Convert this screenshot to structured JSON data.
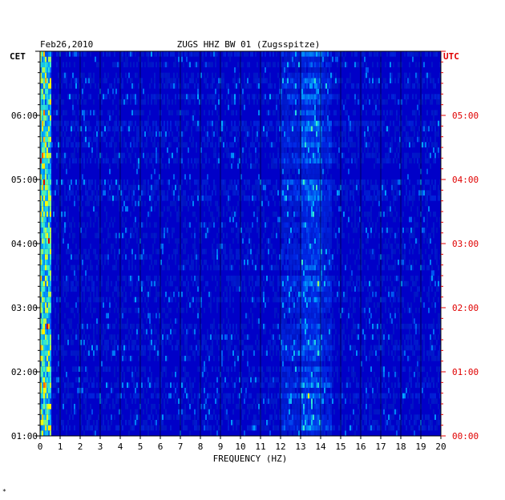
{
  "chart_data": {
    "type": "heatmap",
    "date": "Feb26,2010",
    "title": "ZUGS HHZ BW 01 (Zugsspitze)",
    "xlabel": "FREQUENCY (HZ)",
    "left_tz": "CET",
    "right_tz": "UTC",
    "xlim": [
      0,
      20
    ],
    "x_ticks": [
      "0",
      "1",
      "2",
      "3",
      "4",
      "5",
      "6",
      "7",
      "8",
      "9",
      "10",
      "11",
      "12",
      "13",
      "14",
      "15",
      "16",
      "17",
      "18",
      "19",
      "20"
    ],
    "left_ticks": [
      "06:00",
      "05:00",
      "04:00",
      "03:00",
      "02:00",
      "01:00"
    ],
    "right_ticks": [
      "05:00",
      "04:00",
      "03:00",
      "02:00",
      "01:00",
      "00:00"
    ],
    "time_range_utc_hours": [
      0,
      6
    ],
    "colors": {
      "low": "#0000c8",
      "mid": "#00c8ff",
      "high": "#ffff00",
      "peak": "#e00000",
      "left_axis": "#000000",
      "right_axis": "#e00000"
    },
    "features": [
      {
        "band_hz": [
          0.0,
          0.5
        ],
        "intensity": "high",
        "note": "persistent low-frequency band"
      },
      {
        "band_hz": [
          12.0,
          14.5
        ],
        "intensity": "medium",
        "note": "intermittent band"
      },
      {
        "band_hz": [
          13.0,
          14.0
        ],
        "intensity": "medium",
        "note": "tremor line"
      }
    ],
    "corner_mark": "*"
  }
}
